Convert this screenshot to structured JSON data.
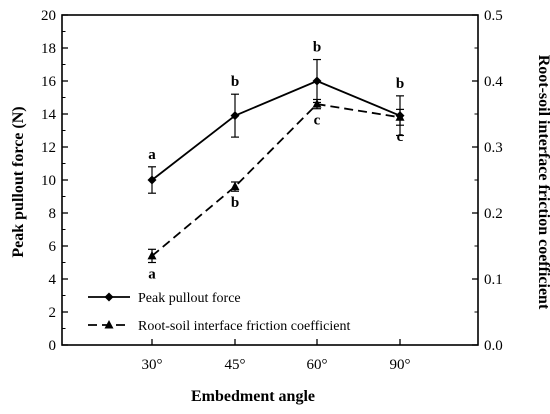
{
  "chart_data": {
    "type": "line",
    "xlabel": "Embedment angle",
    "ylabel": "Peak pullout force (N)",
    "y2label": "Root-soil interface friction coefficient",
    "categories": [
      "30°",
      "45°",
      "60°",
      "90°"
    ],
    "ylim": [
      0,
      20
    ],
    "y_ticks": [
      "0",
      "2",
      "4",
      "6",
      "8",
      "10",
      "12",
      "14",
      "16",
      "18",
      "20"
    ],
    "y2lim": [
      0,
      0.5
    ],
    "y2_ticks": [
      "0.0",
      "0.1",
      "0.2",
      "0.3",
      "0.4",
      "0.5"
    ],
    "legend_position": "lower-left",
    "series": [
      {
        "name": "Peak pullout force",
        "axis": "left",
        "style": "solid",
        "marker": "diamond",
        "values": [
          10.0,
          13.9,
          16.0,
          13.9
        ],
        "errors": [
          0.8,
          1.3,
          1.3,
          1.2
        ],
        "labels": [
          "a",
          "b",
          "b",
          "b"
        ]
      },
      {
        "name": "Root-soil interface friction coefficient",
        "axis": "right",
        "style": "dashed",
        "marker": "triangle",
        "values": [
          0.135,
          0.24,
          0.365,
          0.345
        ],
        "errors": [
          0.01,
          0.007,
          0.007,
          0.012
        ],
        "labels": [
          "a",
          "b",
          "c",
          "c"
        ]
      }
    ]
  }
}
